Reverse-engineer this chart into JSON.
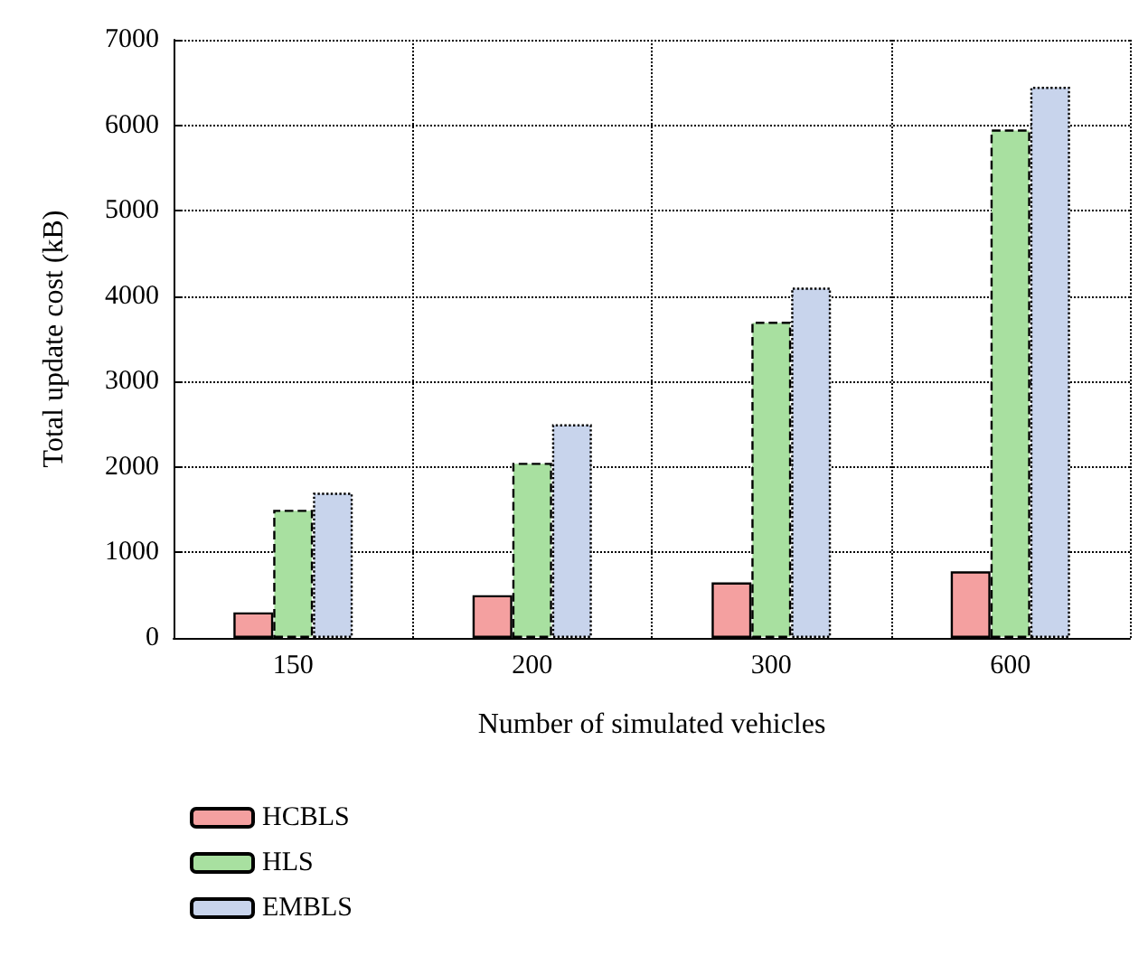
{
  "chart_data": {
    "type": "bar",
    "xlabel": "Number of simulated vehicles",
    "ylabel": "Total update cost (kB)",
    "categories": [
      "150",
      "200",
      "300",
      "600"
    ],
    "series": [
      {
        "name": "HCBLS",
        "color": "#f4a0a0",
        "line_style": "solid",
        "values": [
          300,
          500,
          650,
          780
        ]
      },
      {
        "name": "HLS",
        "color": "#a8e0a0",
        "line_style": "dashed",
        "values": [
          1500,
          2050,
          3700,
          5950
        ]
      },
      {
        "name": "EMBLS",
        "color": "#c8d4ec",
        "line_style": "dotted",
        "values": [
          1700,
          2500,
          4100,
          6450
        ]
      }
    ],
    "ylim": [
      0,
      7000
    ],
    "yticks": [
      0,
      1000,
      2000,
      3000,
      4000,
      5000,
      6000,
      7000
    ],
    "grid": true,
    "legend": "bottom left"
  }
}
